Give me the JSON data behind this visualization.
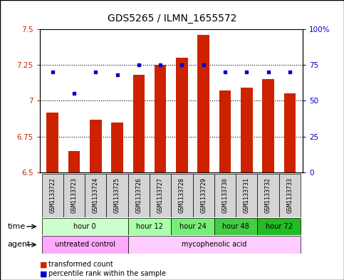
{
  "title": "GDS5265 / ILMN_1655572",
  "samples": [
    "GSM1133722",
    "GSM1133723",
    "GSM1133724",
    "GSM1133725",
    "GSM1133726",
    "GSM1133727",
    "GSM1133728",
    "GSM1133729",
    "GSM1133730",
    "GSM1133731",
    "GSM1133732",
    "GSM1133733"
  ],
  "bar_values": [
    6.92,
    6.65,
    6.87,
    6.85,
    7.18,
    7.25,
    7.3,
    7.46,
    7.07,
    7.09,
    7.15,
    7.05
  ],
  "dot_values": [
    70,
    55,
    70,
    68,
    75,
    75,
    75,
    75,
    70,
    70,
    70,
    70
  ],
  "bar_color": "#cc2200",
  "dot_color": "#0000cc",
  "ylim_left": [
    6.5,
    7.5
  ],
  "ylim_right": [
    0,
    100
  ],
  "yticks_left": [
    6.5,
    6.75,
    7.0,
    7.25,
    7.5
  ],
  "yticks_right": [
    0,
    25,
    50,
    75,
    100
  ],
  "ytick_labels_left": [
    "6.5",
    "6.75",
    "7",
    "7.25",
    "7.5"
  ],
  "ytick_labels_right": [
    "0",
    "25",
    "50",
    "75",
    "100%"
  ],
  "hlines": [
    6.75,
    7.0,
    7.25
  ],
  "time_groups": [
    {
      "label": "hour 0",
      "start": 0,
      "end": 4,
      "color": "#ccffcc"
    },
    {
      "label": "hour 12",
      "start": 4,
      "end": 6,
      "color": "#aaffaa"
    },
    {
      "label": "hour 24",
      "start": 6,
      "end": 8,
      "color": "#77ee77"
    },
    {
      "label": "hour 48",
      "start": 8,
      "end": 10,
      "color": "#44cc44"
    },
    {
      "label": "hour 72",
      "start": 10,
      "end": 12,
      "color": "#22bb22"
    }
  ],
  "agent_groups": [
    {
      "label": "untreated control",
      "start": 0,
      "end": 4,
      "color": "#ffaaff"
    },
    {
      "label": "mycophenolic acid",
      "start": 4,
      "end": 12,
      "color": "#ffccff"
    }
  ],
  "legend_bar_label": "transformed count",
  "legend_dot_label": "percentile rank within the sample",
  "bg_color": "#ffffff",
  "bar_width": 0.55,
  "title_fontsize": 10,
  "tick_fontsize": 7.5,
  "sample_fontsize": 6,
  "row_fontsize": 7,
  "time_row_label": "time",
  "agent_row_label": "agent"
}
